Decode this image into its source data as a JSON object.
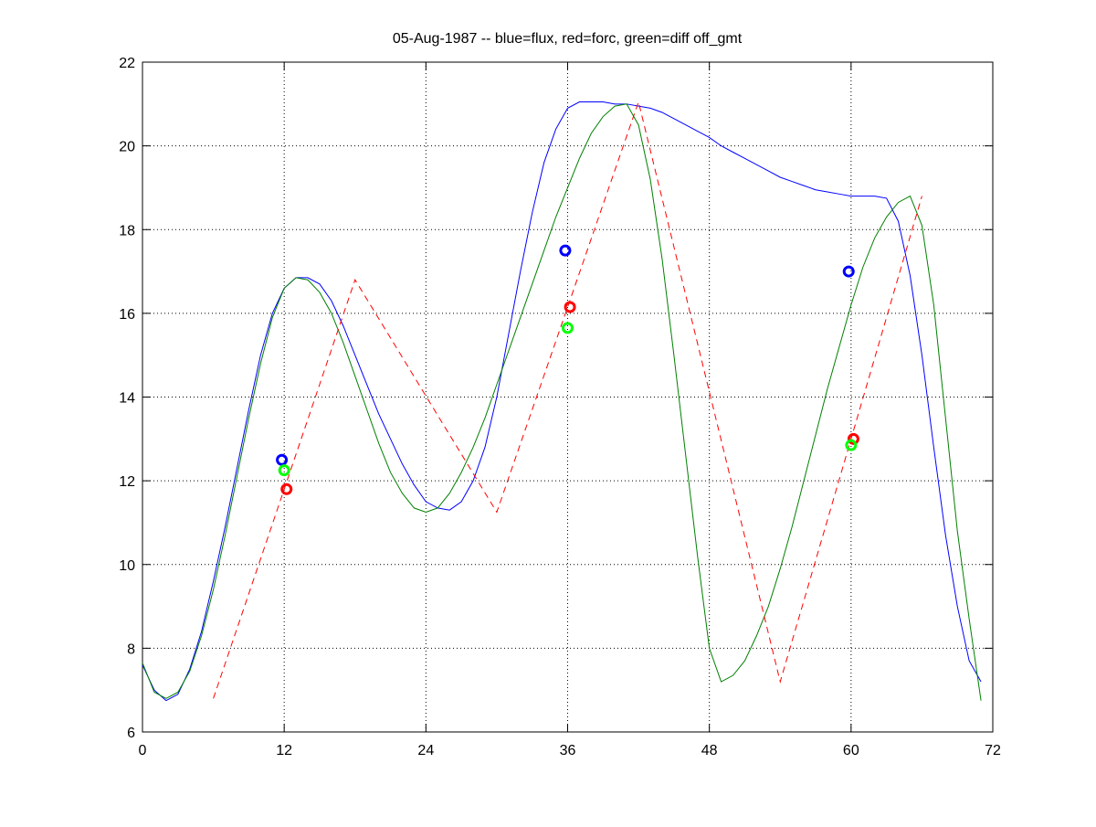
{
  "chart_data": {
    "type": "line",
    "title": "05-Aug-1987 -- blue=flux, red=forc, green=diff off_gmt",
    "xlim": [
      0,
      72
    ],
    "xticks": [
      0,
      12,
      24,
      36,
      48,
      60,
      72
    ],
    "ylim": [
      6,
      22
    ],
    "yticks": [
      6,
      8,
      10,
      12,
      14,
      16,
      18,
      20,
      22
    ],
    "grid": true,
    "series": [
      {
        "color": "#0000ff",
        "linestyle": "solid",
        "marker": "none",
        "x": [
          0,
          1,
          2,
          3,
          4,
          5,
          6,
          7,
          8,
          9,
          10,
          11,
          12,
          13,
          14,
          15,
          16,
          17,
          18,
          19,
          20,
          21,
          22,
          23,
          24,
          25,
          26,
          27,
          28,
          29,
          30,
          31,
          32,
          33,
          34,
          35,
          36,
          37,
          38,
          39,
          40,
          41,
          42,
          43,
          44,
          45,
          46,
          47,
          48,
          49,
          50,
          51,
          52,
          53,
          54,
          55,
          56,
          57,
          58,
          59,
          60,
          61,
          62,
          63,
          64,
          65,
          66,
          67,
          68,
          69,
          70,
          71
        ],
        "values": [
          7.6,
          7.0,
          6.75,
          6.9,
          7.5,
          8.4,
          9.6,
          10.9,
          12.3,
          13.7,
          15.0,
          16.0,
          16.6,
          16.85,
          16.85,
          16.7,
          16.3,
          15.7,
          15.0,
          14.3,
          13.6,
          13.0,
          12.4,
          11.9,
          11.5,
          11.35,
          11.3,
          11.5,
          12.0,
          12.8,
          14.0,
          15.5,
          17.0,
          18.4,
          19.6,
          20.4,
          20.9,
          21.05,
          21.05,
          21.05,
          21.0,
          21.0,
          20.95,
          20.9,
          20.8,
          20.65,
          20.5,
          20.35,
          20.2,
          20.0,
          19.85,
          19.7,
          19.55,
          19.4,
          19.25,
          19.15,
          19.05,
          18.95,
          18.9,
          18.85,
          18.8,
          18.8,
          18.8,
          18.75,
          18.2,
          16.9,
          15.0,
          12.8,
          10.7,
          9.0,
          7.7,
          7.2
        ]
      },
      {
        "color": "#008000",
        "linestyle": "solid",
        "marker": "none",
        "x": [
          0,
          1,
          2,
          3,
          4,
          5,
          6,
          7,
          8,
          9,
          10,
          11,
          12,
          13,
          14,
          15,
          16,
          17,
          18,
          19,
          20,
          21,
          22,
          23,
          24,
          25,
          26,
          27,
          28,
          29,
          30,
          31,
          32,
          33,
          34,
          35,
          36,
          37,
          38,
          39,
          40,
          41,
          42,
          43,
          44,
          45,
          46,
          47,
          48,
          49,
          50,
          51,
          52,
          53,
          54,
          55,
          56,
          57,
          58,
          59,
          60,
          61,
          62,
          63,
          64,
          65,
          66,
          67,
          68,
          69,
          70,
          71
        ],
        "values": [
          7.65,
          6.95,
          6.8,
          6.95,
          7.45,
          8.3,
          9.4,
          10.7,
          12.1,
          13.5,
          14.8,
          15.9,
          16.6,
          16.85,
          16.8,
          16.5,
          16.0,
          15.3,
          14.5,
          13.7,
          12.9,
          12.2,
          11.7,
          11.35,
          11.25,
          11.35,
          11.7,
          12.2,
          12.8,
          13.5,
          14.3,
          15.1,
          15.9,
          16.7,
          17.5,
          18.3,
          19.0,
          19.7,
          20.3,
          20.7,
          20.95,
          21.0,
          20.5,
          19.2,
          17.3,
          15.0,
          12.6,
          10.2,
          8.0,
          7.2,
          7.35,
          7.7,
          8.3,
          9.0,
          9.9,
          10.9,
          12.0,
          13.1,
          14.2,
          15.2,
          16.2,
          17.1,
          17.8,
          18.3,
          18.65,
          18.8,
          18.1,
          16.2,
          13.5,
          10.8,
          8.7,
          6.75
        ]
      },
      {
        "color": "#ff0000",
        "linestyle": "dashed",
        "marker": "none",
        "x": [
          6,
          18,
          30,
          42,
          54,
          66
        ],
        "values": [
          6.8,
          16.8,
          11.25,
          21.05,
          7.2,
          18.8
        ]
      },
      {
        "color": "#0000ff",
        "linestyle": "none",
        "marker": "o",
        "x": [
          11.8,
          35.8,
          59.8
        ],
        "values": [
          12.5,
          17.5,
          17.0
        ]
      },
      {
        "color": "#ff0000",
        "linestyle": "none",
        "marker": "o",
        "x": [
          12.2,
          36.2,
          60.2
        ],
        "values": [
          11.8,
          16.15,
          13.0
        ]
      },
      {
        "color": "#00ff00",
        "linestyle": "none",
        "marker": "o",
        "x": [
          12.0,
          36.0,
          60.0
        ],
        "values": [
          12.25,
          15.65,
          12.85
        ]
      }
    ]
  }
}
